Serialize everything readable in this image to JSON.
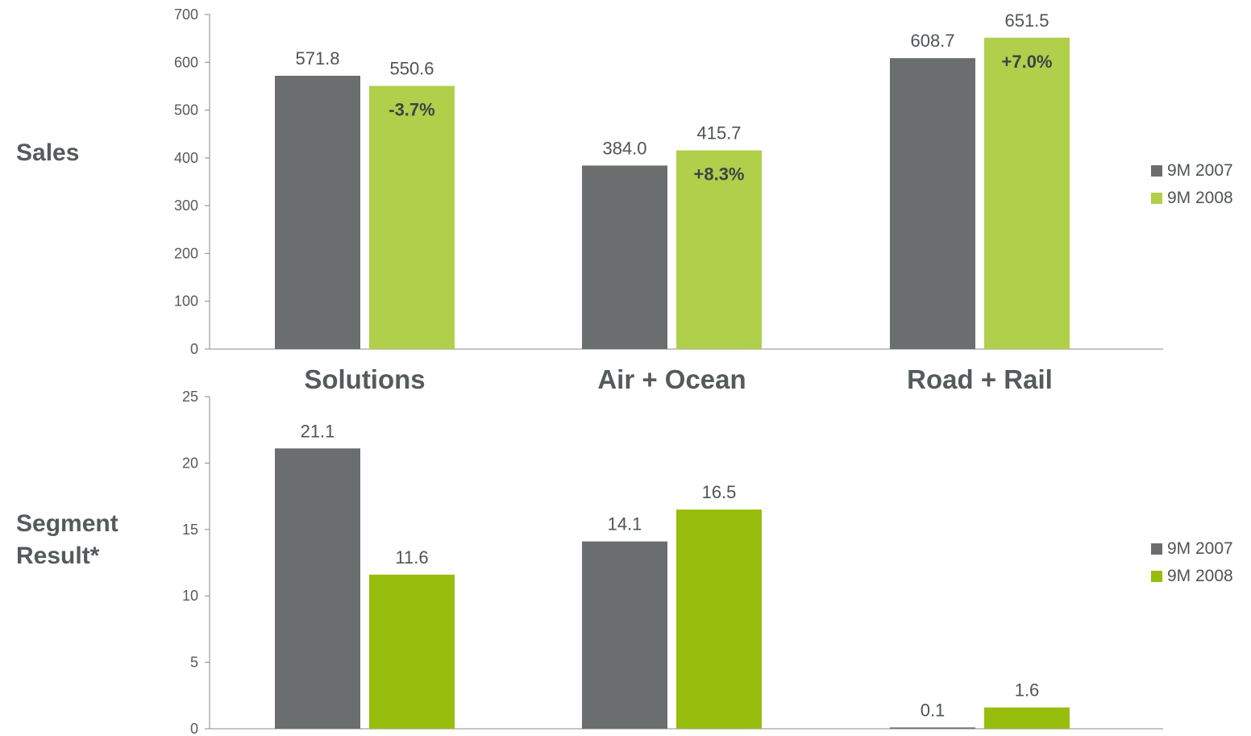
{
  "row_labels": {
    "sales": "Sales",
    "segment_line1": "Segment",
    "segment_line2": "Result*"
  },
  "categories": [
    "Solutions",
    "Air + Ocean",
    "Road + Rail"
  ],
  "legend": {
    "items": [
      "9M 2007",
      "9M 2008"
    ]
  },
  "colors": {
    "series_2007": "#6b6e6f",
    "sales_2008": "#b0cf4b",
    "segment_2008": "#97bd0d",
    "axis": "#888888"
  },
  "chart_data": [
    {
      "type": "bar",
      "title": "Sales",
      "categories": [
        "Solutions",
        "Air + Ocean",
        "Road + Rail"
      ],
      "series": [
        {
          "name": "9M 2007",
          "values": [
            571.8,
            384.0,
            608.7
          ],
          "labels": [
            "571.8",
            "384.0",
            "608.7"
          ]
        },
        {
          "name": "9M 2008",
          "values": [
            550.6,
            415.7,
            651.5
          ],
          "labels": [
            "550.6",
            "415.7",
            "651.5"
          ]
        }
      ],
      "change_labels": [
        "-3.7%",
        "+8.3%",
        "+7.0%"
      ],
      "ylim": [
        0,
        700
      ],
      "yticks": [
        0,
        100,
        200,
        300,
        400,
        500,
        600,
        700
      ],
      "legend_position": "right"
    },
    {
      "type": "bar",
      "title": "Segment Result*",
      "categories": [
        "Solutions",
        "Air + Ocean",
        "Road + Rail"
      ],
      "series": [
        {
          "name": "9M 2007",
          "values": [
            21.1,
            14.1,
            0.1
          ],
          "labels": [
            "21.1",
            "14.1",
            "0.1"
          ]
        },
        {
          "name": "9M 2008",
          "values": [
            11.6,
            16.5,
            1.6
          ],
          "labels": [
            "11.6",
            "16.5",
            "1.6"
          ]
        }
      ],
      "ylim": [
        0,
        25
      ],
      "yticks": [
        0,
        5,
        10,
        15,
        20,
        25
      ],
      "legend_position": "right"
    }
  ]
}
